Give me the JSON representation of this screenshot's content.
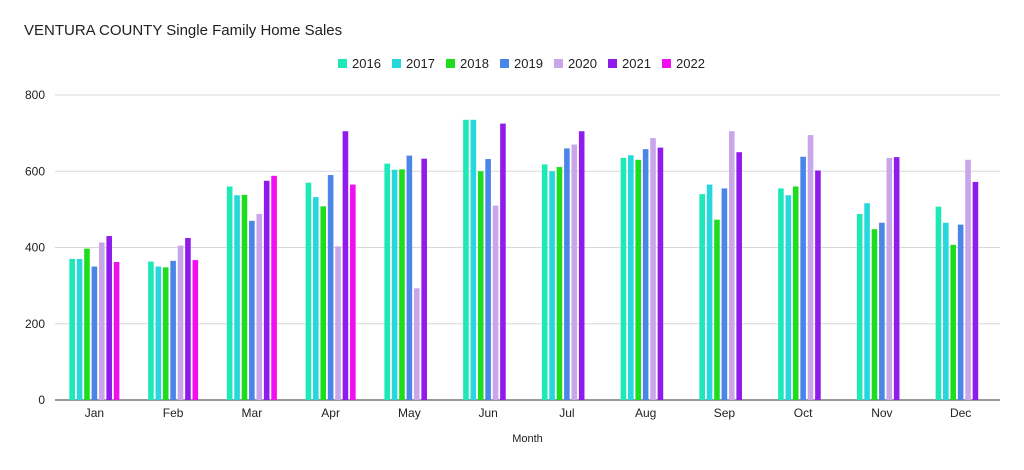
{
  "chart_data": {
    "type": "bar",
    "title": "VENTURA COUNTY Single Family Home Sales",
    "xlabel": "Month",
    "ylabel": "",
    "ylim": [
      0,
      800
    ],
    "yticks": [
      0,
      200,
      400,
      600,
      800
    ],
    "grid": true,
    "legend_position": "top-center",
    "categories": [
      "Jan",
      "Feb",
      "Mar",
      "Apr",
      "May",
      "Jun",
      "Jul",
      "Aug",
      "Sep",
      "Oct",
      "Nov",
      "Dec"
    ],
    "series": [
      {
        "name": "2016",
        "color": "#1de9b6",
        "values": [
          370,
          363,
          560,
          570,
          620,
          735,
          618,
          635,
          540,
          555,
          488,
          507
        ]
      },
      {
        "name": "2017",
        "color": "#26d7dd",
        "values": [
          370,
          350,
          537,
          532,
          604,
          735,
          600,
          642,
          565,
          537,
          516,
          465
        ]
      },
      {
        "name": "2018",
        "color": "#1edc1e",
        "values": [
          397,
          348,
          538,
          508,
          605,
          600,
          611,
          630,
          473,
          560,
          448,
          407
        ]
      },
      {
        "name": "2019",
        "color": "#4a86e8",
        "values": [
          350,
          365,
          470,
          590,
          641,
          632,
          660,
          658,
          555,
          638,
          465,
          460
        ]
      },
      {
        "name": "2020",
        "color": "#c9a6ea",
        "values": [
          413,
          405,
          488,
          403,
          293,
          510,
          670,
          687,
          705,
          695,
          635,
          630
        ]
      },
      {
        "name": "2021",
        "color": "#8f1ceb",
        "values": [
          430,
          425,
          575,
          705,
          633,
          725,
          705,
          662,
          650,
          602,
          637,
          572
        ]
      },
      {
        "name": "2022",
        "color": "#f00ff0",
        "values": [
          362,
          367,
          588,
          565,
          null,
          null,
          null,
          null,
          null,
          null,
          null,
          null
        ]
      }
    ]
  }
}
